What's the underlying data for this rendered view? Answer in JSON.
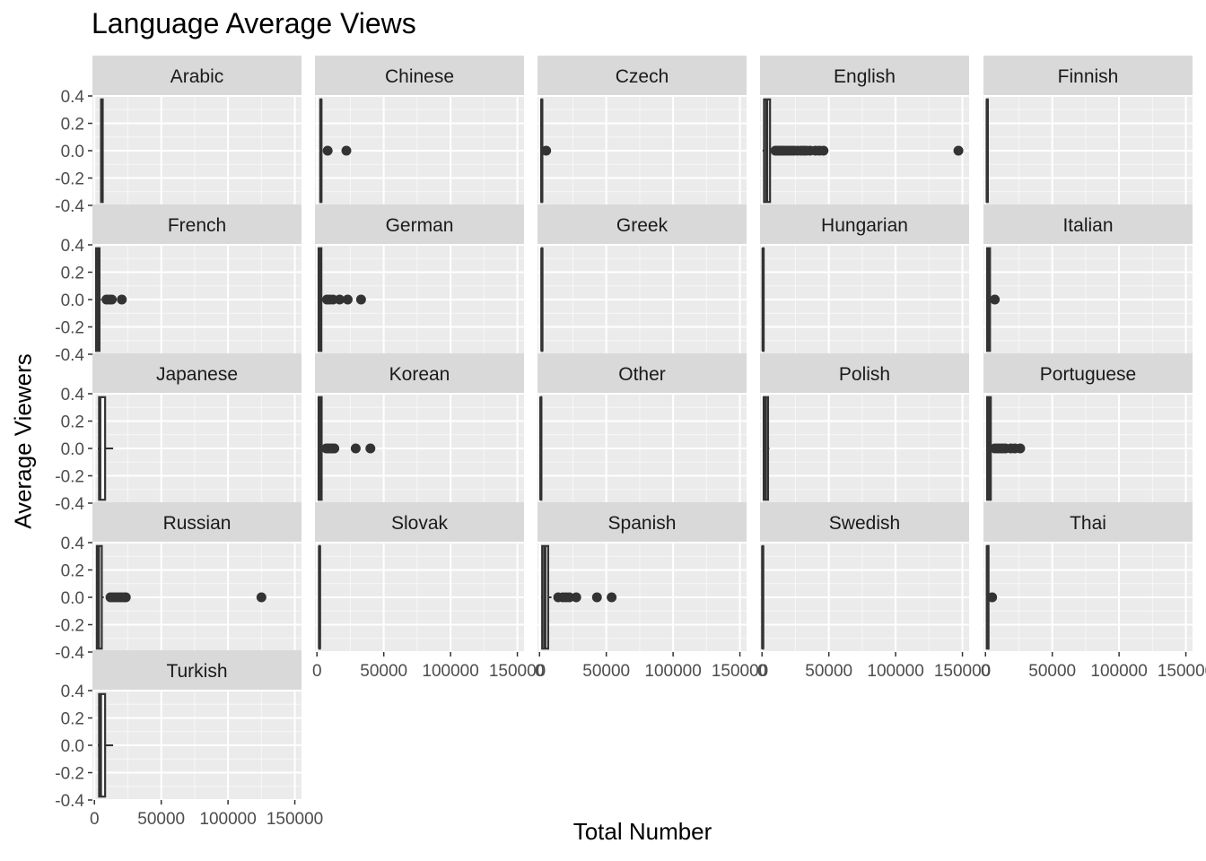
{
  "chart_data": {
    "type": "boxplot",
    "title": "Language Average Views",
    "xlabel": "Total Number",
    "ylabel": "Average Viewers",
    "facet_by": "language",
    "facet_columns": 5,
    "xlim": [
      -1500,
      155000
    ],
    "ylim": [
      -0.4,
      0.4
    ],
    "x_ticks": [
      0,
      50000,
      100000,
      150000
    ],
    "x_tick_labels": [
      "0",
      "50000",
      "100000",
      "150000"
    ],
    "y_ticks": [
      0.4,
      0.2,
      0.0,
      -0.2,
      -0.4
    ],
    "y_tick_labels": [
      "0.4",
      "0.2",
      "0.0",
      "-0.2",
      "-0.4"
    ],
    "grid": true,
    "colors": {
      "panel_bg": "#ebebeb",
      "strip_bg": "#d9d9d9",
      "grid_major": "#ffffff",
      "box_line": "#333333",
      "point": "#333333",
      "text": "#4d4d4d"
    },
    "facets": [
      {
        "label": "Arabic",
        "box": {
          "q1": 5000,
          "median": 5500,
          "q3": 6200
        },
        "whisker": [
          4600,
          6400
        ],
        "outliers": []
      },
      {
        "label": "Chinese",
        "box": {
          "q1": 2600,
          "median": 2900,
          "q3": 3300
        },
        "whisker": [
          2300,
          3700
        ],
        "outliers": [
          8000,
          22000
        ]
      },
      {
        "label": "Czech",
        "box": {
          "q1": 1400,
          "median": 1700,
          "q3": 2000
        },
        "whisker": [
          1200,
          2400
        ],
        "outliers": [
          5000
        ]
      },
      {
        "label": "English",
        "box": {
          "q1": 1500,
          "median": 3500,
          "q3": 6000
        },
        "whisker": [
          400,
          8000
        ],
        "outliers": [
          10000,
          11500,
          13000,
          14500,
          16000,
          18000,
          20000,
          22000,
          24000,
          26500,
          29000,
          31000,
          33000,
          36000,
          40000,
          43000,
          46000,
          147000
        ]
      },
      {
        "label": "Finnish",
        "box": {
          "q1": 1000,
          "median": 1300,
          "q3": 1700
        },
        "whisker": [
          900,
          2000
        ],
        "outliers": []
      },
      {
        "label": "French",
        "box": {
          "q1": 1200,
          "median": 2200,
          "q3": 3800
        },
        "whisker": [
          800,
          5000
        ],
        "outliers": [
          9000,
          11000,
          13000,
          20500
        ]
      },
      {
        "label": "German",
        "box": {
          "q1": 1200,
          "median": 2000,
          "q3": 3300
        },
        "whisker": [
          800,
          5000
        ],
        "outliers": [
          7500,
          9500,
          12000,
          17000,
          23000,
          33000
        ]
      },
      {
        "label": "Greek",
        "box": {
          "q1": 1600,
          "median": 1800,
          "q3": 2100
        },
        "whisker": [
          1400,
          2400
        ],
        "outliers": []
      },
      {
        "label": "Hungarian",
        "box": {
          "q1": 600,
          "median": 800,
          "q3": 1100
        },
        "whisker": [
          500,
          1300
        ],
        "outliers": []
      },
      {
        "label": "Italian",
        "box": {
          "q1": 1200,
          "median": 2000,
          "q3": 3400
        },
        "whisker": [
          800,
          4400
        ],
        "outliers": [
          7000
        ]
      },
      {
        "label": "Japanese",
        "box": {
          "q1": 3500,
          "median": 4000,
          "q3": 8000
        },
        "whisker": [
          2500,
          14000
        ],
        "outliers": []
      },
      {
        "label": "Korean",
        "box": {
          "q1": 1200,
          "median": 2000,
          "q3": 3500
        },
        "whisker": [
          800,
          5000
        ],
        "outliers": [
          7000,
          8500,
          10000,
          11500,
          13000,
          29000,
          40000
        ]
      },
      {
        "label": "Other",
        "box": {
          "q1": 800,
          "median": 1000,
          "q3": 1300
        },
        "whisker": [
          600,
          1600
        ],
        "outliers": []
      },
      {
        "label": "Polish",
        "box": {
          "q1": 1200,
          "median": 2500,
          "q3": 4500
        },
        "whisker": [
          800,
          5500
        ],
        "outliers": []
      },
      {
        "label": "Portuguese",
        "box": {
          "q1": 1200,
          "median": 2500,
          "q3": 4000
        },
        "whisker": [
          800,
          5500
        ],
        "outliers": [
          7000,
          9000,
          11000,
          13000,
          15000,
          19000,
          22000,
          26000
        ]
      },
      {
        "label": "Russian",
        "box": {
          "q1": 1800,
          "median": 3000,
          "q3": 5500
        },
        "whisker": [
          1200,
          7000
        ],
        "outliers": [
          12000,
          14000,
          16000,
          18000,
          20000,
          22000,
          23500,
          125000
        ]
      },
      {
        "label": "Slovak",
        "box": {
          "q1": 1700,
          "median": 1900,
          "q3": 2200
        },
        "whisker": [
          1500,
          2500
        ],
        "outliers": []
      },
      {
        "label": "Spanish",
        "box": {
          "q1": 2000,
          "median": 4000,
          "q3": 6500
        },
        "whisker": [
          1200,
          9000
        ],
        "outliers": [
          14000,
          17500,
          20000,
          22500,
          27500,
          43000,
          54000
        ]
      },
      {
        "label": "Swedish",
        "box": {
          "q1": 300,
          "median": 500,
          "q3": 800
        },
        "whisker": [
          200,
          1000
        ],
        "outliers": []
      },
      {
        "label": "Thai",
        "box": {
          "q1": 1000,
          "median": 1500,
          "q3": 2300
        },
        "whisker": [
          700,
          2700
        ],
        "outliers": [
          5000
        ]
      },
      {
        "label": "Turkish",
        "box": {
          "q1": 3500,
          "median": 4500,
          "q3": 8000
        },
        "whisker": [
          2500,
          14000
        ],
        "outliers": []
      }
    ]
  }
}
